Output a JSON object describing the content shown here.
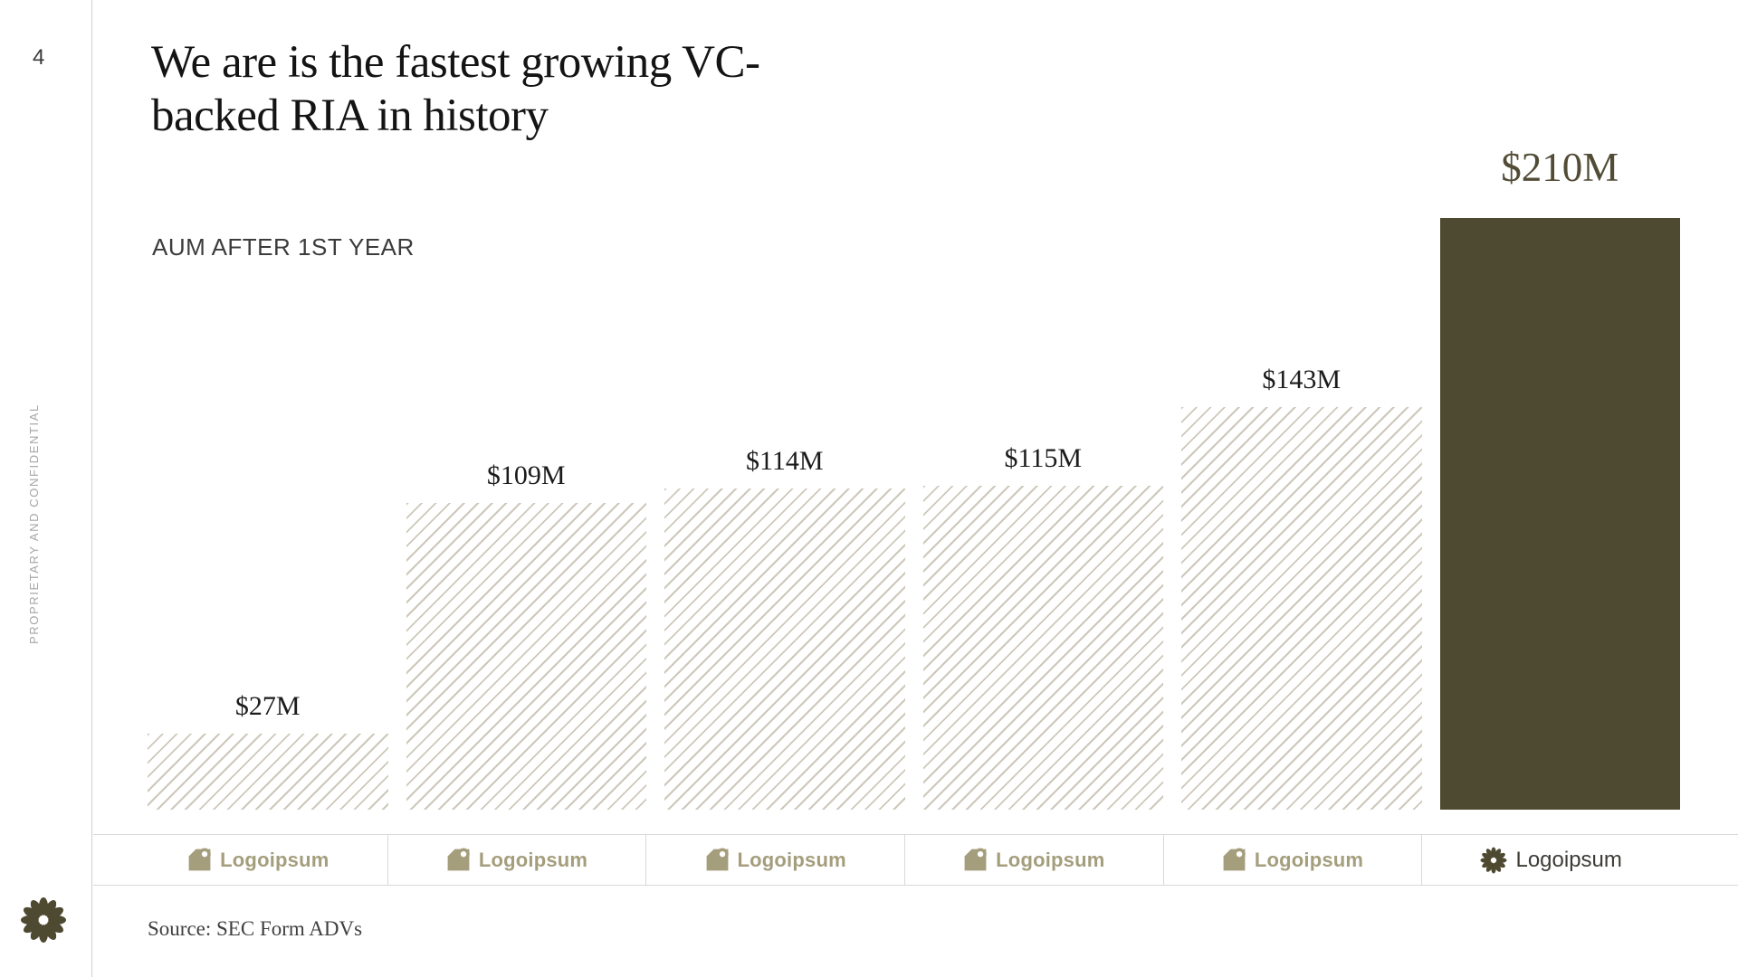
{
  "page_number": "4",
  "confidential_text": "PROPRIETARY AND CONFIDENTIAL",
  "title": "We are is the fastest growing VC-backed RIA in history",
  "chart_label": "AUM AFTER 1ST YEAR",
  "source_text": "Source: SEC Form ADVs",
  "colors": {
    "accent_olive": "#4e4931",
    "hatch_line": "#cdc8ba",
    "logo_olive": "#a49e7d",
    "border_gray": "#d9d9d6",
    "highlight_value_text": "#524c36",
    "title_text": "#141414"
  },
  "chart_data": {
    "type": "bar",
    "title": "AUM AFTER 1ST YEAR",
    "unit": "$M",
    "ylim": [
      0,
      210
    ],
    "grid": false,
    "categories": [
      "Logoipsum",
      "Logoipsum",
      "Logoipsum",
      "Logoipsum",
      "Logoipsum",
      "Logoipsum"
    ],
    "values": [
      27,
      109,
      114,
      115,
      143,
      210
    ],
    "labels": [
      "$27M",
      "$109M",
      "$114M",
      "$115M",
      "$143M",
      "$210M"
    ],
    "bar_styles": [
      "hatched",
      "hatched",
      "hatched",
      "hatched",
      "hatched",
      "solid"
    ],
    "logo_icons": [
      "logoipsum-marker-icon",
      "logoipsum-marker-icon",
      "logoipsum-marker-icon",
      "logoipsum-marker-icon",
      "logoipsum-marker-icon",
      "logoipsum-flower-icon"
    ],
    "highlighted_index": 5
  }
}
